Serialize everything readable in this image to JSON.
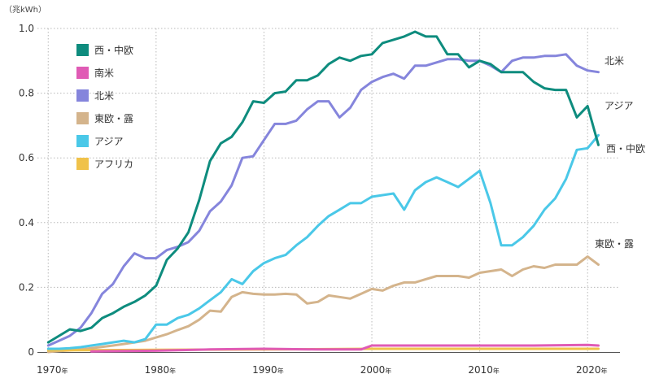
{
  "chart_data": {
    "type": "line",
    "ylabel": "（兆kWh）",
    "ylim": [
      0,
      1.0
    ],
    "xlim": [
      1969,
      2023
    ],
    "grid": true,
    "legend_position": "top-left",
    "y_ticks": [
      {
        "value": 0,
        "label": "0"
      },
      {
        "value": 0.2,
        "label": "0.2"
      },
      {
        "value": 0.4,
        "label": "0.4"
      },
      {
        "value": 0.6,
        "label": "0.6"
      },
      {
        "value": 0.8,
        "label": "0.8"
      },
      {
        "value": 1.0,
        "label": "1.0"
      }
    ],
    "x_ticks": [
      {
        "value": 1970,
        "label": "1970",
        "suffix": "年"
      },
      {
        "value": 1980,
        "label": "1980",
        "suffix": "年"
      },
      {
        "value": 1990,
        "label": "1990",
        "suffix": "年"
      },
      {
        "value": 2000,
        "label": "2000",
        "suffix": "年"
      },
      {
        "value": 2010,
        "label": "2010",
        "suffix": "年"
      },
      {
        "value": 2020,
        "label": "2020",
        "suffix": "年"
      }
    ],
    "series": [
      {
        "name": "西・中欧",
        "color": "#0e8c7e",
        "end_label": "西・中欧",
        "x": [
          1970,
          1971,
          1972,
          1973,
          1974,
          1975,
          1976,
          1977,
          1978,
          1979,
          1980,
          1981,
          1982,
          1983,
          1984,
          1985,
          1986,
          1987,
          1988,
          1989,
          1990,
          1991,
          1992,
          1993,
          1994,
          1995,
          1996,
          1997,
          1998,
          1999,
          2000,
          2001,
          2002,
          2003,
          2004,
          2005,
          2006,
          2007,
          2008,
          2009,
          2010,
          2011,
          2012,
          2013,
          2014,
          2015,
          2016,
          2017,
          2018,
          2019,
          2020,
          2021
        ],
        "values": [
          0.03,
          0.05,
          0.07,
          0.065,
          0.075,
          0.105,
          0.12,
          0.14,
          0.155,
          0.175,
          0.205,
          0.285,
          0.32,
          0.37,
          0.47,
          0.59,
          0.645,
          0.665,
          0.71,
          0.775,
          0.77,
          0.8,
          0.805,
          0.84,
          0.84,
          0.855,
          0.89,
          0.91,
          0.9,
          0.915,
          0.92,
          0.955,
          0.965,
          0.975,
          0.99,
          0.975,
          0.975,
          0.92,
          0.92,
          0.88,
          0.9,
          0.89,
          0.865,
          0.865,
          0.865,
          0.835,
          0.815,
          0.81,
          0.81,
          0.725,
          0.76,
          0.64
        ]
      },
      {
        "name": "南米",
        "color": "#e05bb5",
        "x": [
          1974,
          1980,
          1985,
          1990,
          1995,
          1999,
          2000,
          2005,
          2010,
          2015,
          2020,
          2021
        ],
        "values": [
          0.002,
          0.004,
          0.008,
          0.01,
          0.008,
          0.008,
          0.02,
          0.02,
          0.02,
          0.02,
          0.022,
          0.02
        ]
      },
      {
        "name": "北米",
        "color": "#8585dc",
        "end_label": "北米",
        "x": [
          1970,
          1971,
          1972,
          1973,
          1974,
          1975,
          1976,
          1977,
          1978,
          1979,
          1980,
          1981,
          1982,
          1983,
          1984,
          1985,
          1986,
          1987,
          1988,
          1989,
          1990,
          1991,
          1992,
          1993,
          1994,
          1995,
          1996,
          1997,
          1998,
          1999,
          2000,
          2001,
          2002,
          2003,
          2004,
          2005,
          2006,
          2007,
          2008,
          2009,
          2010,
          2011,
          2012,
          2013,
          2014,
          2015,
          2016,
          2017,
          2018,
          2019,
          2020,
          2021
        ],
        "values": [
          0.02,
          0.035,
          0.05,
          0.075,
          0.12,
          0.18,
          0.21,
          0.265,
          0.305,
          0.29,
          0.29,
          0.315,
          0.325,
          0.34,
          0.375,
          0.435,
          0.465,
          0.515,
          0.6,
          0.605,
          0.655,
          0.705,
          0.705,
          0.715,
          0.75,
          0.775,
          0.775,
          0.725,
          0.755,
          0.81,
          0.835,
          0.85,
          0.86,
          0.845,
          0.885,
          0.885,
          0.895,
          0.905,
          0.905,
          0.9,
          0.9,
          0.885,
          0.865,
          0.9,
          0.91,
          0.91,
          0.915,
          0.915,
          0.92,
          0.885,
          0.87,
          0.865
        ]
      },
      {
        "name": "東欧・露",
        "color": "#d4b48c",
        "end_label": "東欧・露",
        "x": [
          1970,
          1971,
          1972,
          1973,
          1974,
          1975,
          1976,
          1977,
          1978,
          1979,
          1980,
          1981,
          1982,
          1983,
          1984,
          1985,
          1986,
          1987,
          1988,
          1989,
          1990,
          1991,
          1992,
          1993,
          1994,
          1995,
          1996,
          1997,
          1998,
          1999,
          2000,
          2001,
          2002,
          2003,
          2004,
          2005,
          2006,
          2007,
          2008,
          2009,
          2010,
          2011,
          2012,
          2013,
          2014,
          2015,
          2016,
          2017,
          2018,
          2019,
          2020,
          2021
        ],
        "values": [
          0.0,
          0.003,
          0.005,
          0.008,
          0.012,
          0.016,
          0.02,
          0.025,
          0.03,
          0.035,
          0.045,
          0.055,
          0.068,
          0.08,
          0.1,
          0.128,
          0.125,
          0.17,
          0.185,
          0.18,
          0.178,
          0.178,
          0.18,
          0.178,
          0.15,
          0.155,
          0.175,
          0.17,
          0.165,
          0.18,
          0.195,
          0.19,
          0.205,
          0.215,
          0.215,
          0.225,
          0.235,
          0.235,
          0.235,
          0.23,
          0.245,
          0.25,
          0.255,
          0.235,
          0.255,
          0.265,
          0.26,
          0.27,
          0.27,
          0.27,
          0.295,
          0.27
        ]
      },
      {
        "name": "アジア",
        "color": "#4ac8e8",
        "end_label": "アジア",
        "x": [
          1970,
          1971,
          1972,
          1973,
          1974,
          1975,
          1976,
          1977,
          1978,
          1979,
          1980,
          1981,
          1982,
          1983,
          1984,
          1985,
          1986,
          1987,
          1988,
          1989,
          1990,
          1991,
          1992,
          1993,
          1994,
          1995,
          1996,
          1997,
          1998,
          1999,
          2000,
          2001,
          2002,
          2003,
          2004,
          2005,
          2006,
          2007,
          2008,
          2009,
          2010,
          2011,
          2012,
          2013,
          2014,
          2015,
          2016,
          2017,
          2018,
          2019,
          2020,
          2021
        ],
        "values": [
          0.01,
          0.01,
          0.012,
          0.015,
          0.02,
          0.025,
          0.03,
          0.035,
          0.03,
          0.04,
          0.085,
          0.085,
          0.105,
          0.115,
          0.135,
          0.16,
          0.185,
          0.225,
          0.21,
          0.25,
          0.275,
          0.29,
          0.3,
          0.33,
          0.355,
          0.39,
          0.42,
          0.44,
          0.46,
          0.46,
          0.48,
          0.485,
          0.49,
          0.44,
          0.5,
          0.525,
          0.54,
          0.525,
          0.51,
          0.535,
          0.56,
          0.46,
          0.33,
          0.33,
          0.355,
          0.39,
          0.44,
          0.475,
          0.535,
          0.625,
          0.63,
          0.67
        ]
      },
      {
        "name": "アフリカ",
        "color": "#f0c24a",
        "x": [
          1970,
          1980,
          1990,
          2000,
          2010,
          2020,
          2021
        ],
        "values": [
          0.005,
          0.007,
          0.008,
          0.01,
          0.01,
          0.01,
          0.01
        ]
      }
    ]
  }
}
